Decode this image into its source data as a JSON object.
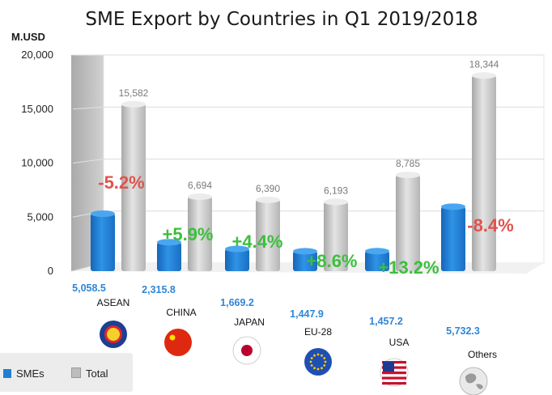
{
  "title": "SME Export  by Countries in Q1 2019/2018",
  "unit": "M.USD",
  "legend": {
    "smes_label": "SMEs",
    "total_label": "Total"
  },
  "colors": {
    "smes": "#1f7fd3",
    "total": "#cfcfcf",
    "positive": "#3cbf3c",
    "negative": "#e0534d"
  },
  "chart_data": {
    "type": "bar",
    "title": "SME Export  by Countries in Q1 2019/2018",
    "ylabel": "M.USD",
    "ylim": [
      0,
      20000
    ],
    "yticks": [
      "0",
      "5,000",
      "10,000",
      "15,000",
      "20,000"
    ],
    "categories": [
      "ASEAN",
      "CHINA",
      "JAPAN",
      "EU-28",
      "USA",
      "Others"
    ],
    "series": [
      {
        "name": "SMEs",
        "values": [
          5058.5,
          2315.8,
          1669.2,
          1447.9,
          1457.2,
          5732.3
        ],
        "labels": [
          "5,058.5",
          "2,315.8",
          "1,669.2",
          "1,447.9",
          "1,457.2",
          "5,732.3"
        ]
      },
      {
        "name": "Total",
        "values": [
          15582,
          6694,
          6390,
          6193,
          8785,
          18344
        ],
        "labels": [
          "15,582",
          "6,694",
          "6,390",
          "6,193",
          "8,785",
          "18,344"
        ]
      }
    ],
    "changes": [
      "-5.2%",
      "+5.9%",
      "+4.4%",
      "+8.6%",
      "+13.2%",
      "-8.4%"
    ],
    "grid": true,
    "legend_position": "bottom-left"
  },
  "flags": [
    "asean-emblem",
    "china-flag",
    "japan-flag",
    "eu-flag",
    "usa-flag",
    "globe-icon"
  ]
}
